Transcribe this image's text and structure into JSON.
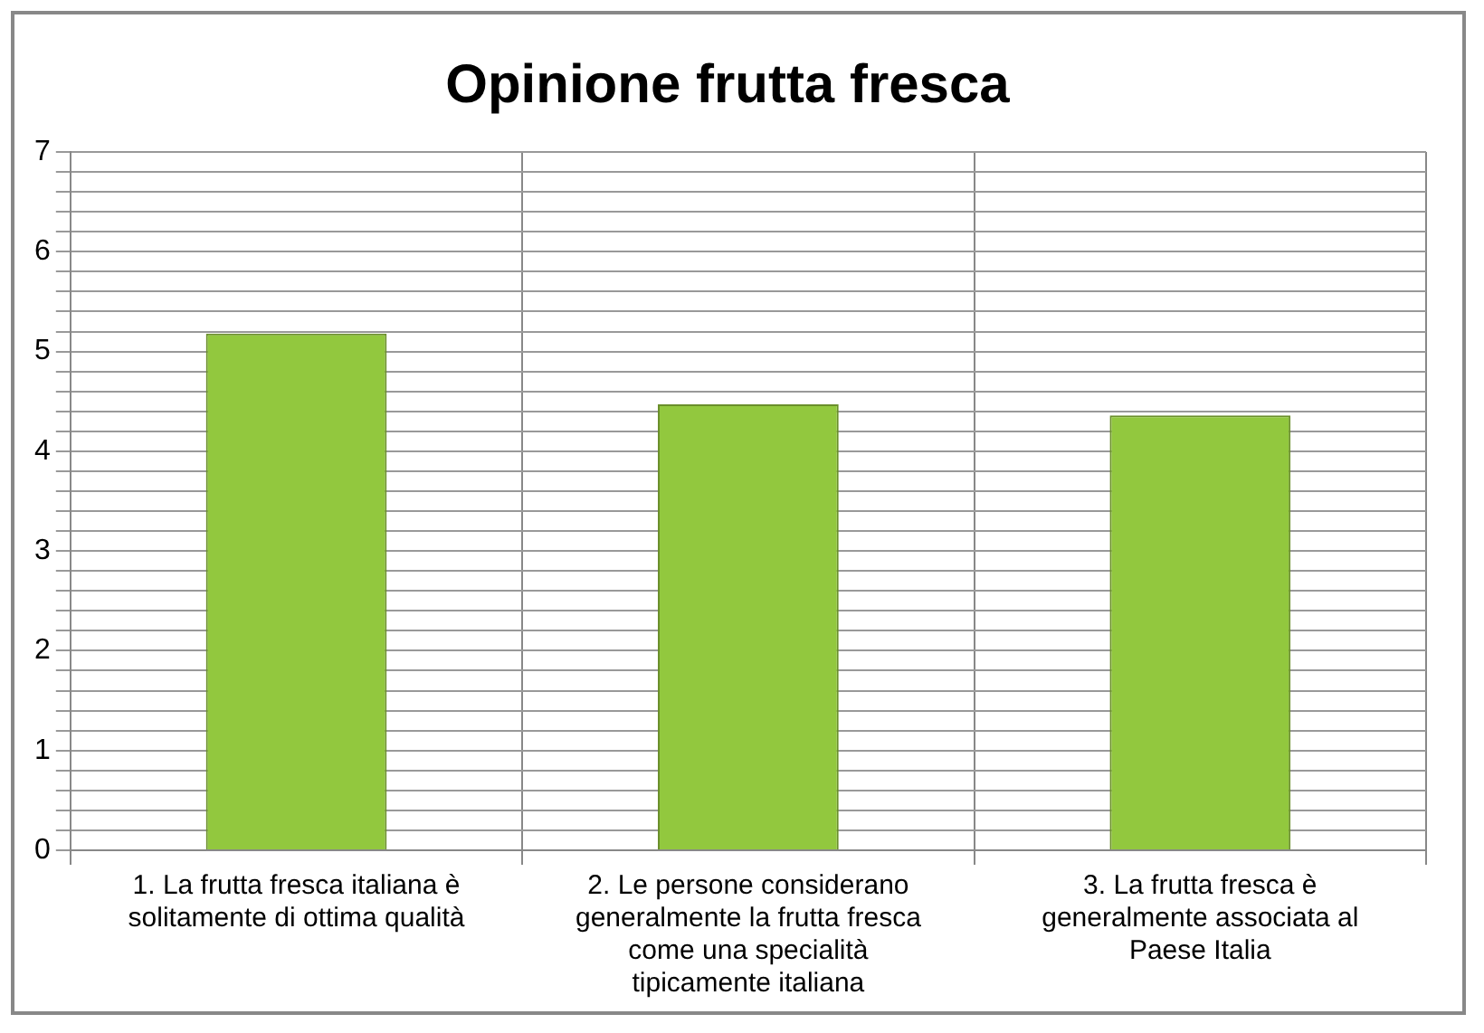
{
  "chart_data": {
    "type": "bar",
    "title": "Opinione frutta fresca",
    "categories": [
      "1. La frutta fresca italiana è solitamente di ottima qualità",
      "2. Le persone considerano generalmente la frutta fresca come una specialità tipicamente italiana",
      "3. La frutta fresca è generalmente associata al Paese Italia"
    ],
    "values": [
      5.18,
      4.47,
      4.36
    ],
    "color": "#92c83e",
    "ylim": [
      0,
      7
    ],
    "yticks": [
      0,
      {
        "value": 0.2,
        "label": null
      },
      {
        "value": 0.4,
        "label": null
      },
      {
        "value": 0.6,
        "label": null
      },
      {
        "value": 0.8,
        "label": null
      },
      1,
      {
        "value": 1.2,
        "label": null
      },
      {
        "value": 1.4,
        "label": null
      },
      {
        "value": 1.6,
        "label": null
      },
      {
        "value": 1.8,
        "label": null
      },
      2,
      {
        "value": 2.2,
        "label": null
      },
      {
        "value": 2.4,
        "label": null
      },
      {
        "value": 2.6,
        "label": null
      },
      {
        "value": 2.8,
        "label": null
      },
      3,
      {
        "value": 3.2,
        "label": null
      },
      {
        "value": 3.4,
        "label": null
      },
      {
        "value": 3.6,
        "label": null
      },
      {
        "value": 3.8,
        "label": null
      },
      4,
      {
        "value": 4.2,
        "label": null
      },
      {
        "value": 4.4,
        "label": null
      },
      {
        "value": 4.6,
        "label": null
      },
      {
        "value": 4.8,
        "label": null
      },
      5,
      {
        "value": 5.2,
        "label": null
      },
      {
        "value": 5.4,
        "label": null
      },
      {
        "value": 5.6,
        "label": null
      },
      {
        "value": 5.8,
        "label": null
      },
      6,
      {
        "value": 6.2,
        "label": null
      },
      {
        "value": 6.4,
        "label": null
      },
      {
        "value": 6.6,
        "label": null
      },
      {
        "value": 6.8,
        "label": null
      },
      7
    ],
    "grid": true
  }
}
